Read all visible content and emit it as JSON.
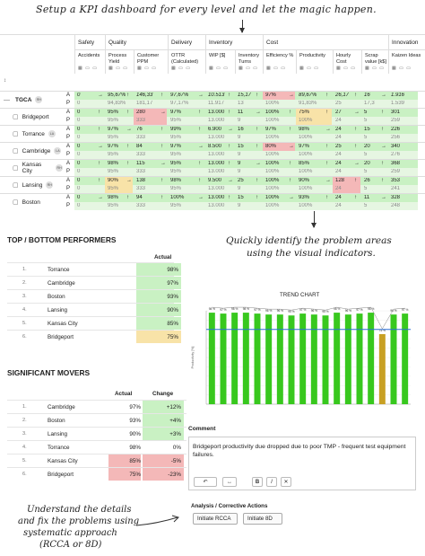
{
  "annotations": {
    "top": "Setup a KPI dashboard for every level and let the magic happen.",
    "middle_line1": "Quickly identify the problem areas",
    "middle_line2": "using the visual indicators.",
    "bottom_line1": "Understand the details",
    "bottom_line2": "and fix the problems using",
    "bottom_line3": "systematic approach",
    "bottom_line4": "(RCCA or 8D)"
  },
  "kpi_table": {
    "groups": [
      "Safety",
      "Quality",
      "Delivery",
      "Inventory",
      "Cost",
      "Innovation"
    ],
    "columns": [
      "Accidents",
      "Process Yield",
      "Customer PPM",
      "OTTR (Calculated)",
      "WIP [$]",
      "Inventory Turns",
      "Efficiency %",
      "Productivity",
      "Hourly Cost",
      "Scrap value [k$]",
      "Kaizen Ideas"
    ],
    "header_icons": "▦ ▭ ▭",
    "expand_icon": "↕",
    "row_labels": {
      "actual": "A",
      "plan": "P"
    },
    "rows": [
      {
        "name": "TGCA",
        "badge": "RH",
        "actual": [
          "0",
          "95,67%",
          "146,33",
          "97,67%",
          "10.513",
          "15,17",
          "97%",
          "89,67%",
          "26,17",
          "16",
          "1.916"
        ],
        "plan": [
          "0",
          "94,83%",
          "181,17",
          "97,17%",
          "11.917",
          "13",
          "100%",
          "91,83%",
          "25",
          "17,3",
          "1.539"
        ]
      },
      {
        "name": "Bridgeport",
        "badge": "",
        "actual": [
          "0",
          "95%",
          "280",
          "97%",
          "13.000",
          "11",
          "100%",
          "75%",
          "27",
          "5",
          "301"
        ],
        "plan": [
          "0",
          "95%",
          "333",
          "95%",
          "13.000",
          "9",
          "100%",
          "100%",
          "24",
          "5",
          "259"
        ]
      },
      {
        "name": "Torrance",
        "badge": "LA",
        "actual": [
          "0",
          "97%",
          "76",
          "99%",
          "6.900",
          "16",
          "97%",
          "98%",
          "24",
          "15",
          "226"
        ],
        "plan": [
          "0",
          "95%",
          "333",
          "95%",
          "13.000",
          "9",
          "100%",
          "100%",
          "24",
          "5",
          "256"
        ]
      },
      {
        "name": "Cambridge",
        "badge": "LA",
        "actual": [
          "0",
          "97%",
          "84",
          "97%",
          "8.500",
          "15",
          "80%",
          "97%",
          "25",
          "20",
          "340"
        ],
        "plan": [
          "0",
          "95%",
          "333",
          "95%",
          "13.000",
          "9",
          "100%",
          "100%",
          "24",
          "5",
          "276"
        ]
      },
      {
        "name": "Kansas City",
        "badge": "RH",
        "actual": [
          "0",
          "98%",
          "115",
          "95%",
          "13.000",
          "9",
          "100%",
          "85%",
          "24",
          "20",
          "368"
        ],
        "plan": [
          "0",
          "95%",
          "333",
          "95%",
          "13.000",
          "9",
          "100%",
          "100%",
          "24",
          "5",
          "259"
        ]
      },
      {
        "name": "Lansing",
        "badge": "RH",
        "actual": [
          "0",
          "90%",
          "138",
          "98%",
          "9.500",
          "25",
          "100%",
          "90%",
          "128",
          "26",
          "353"
        ],
        "plan": [
          "0",
          "95%",
          "333",
          "95%",
          "13.000",
          "9",
          "100%",
          "100%",
          "24",
          "5",
          "241"
        ]
      },
      {
        "name": "Boston",
        "badge": "",
        "actual": [
          "0",
          "98%",
          "94",
          "100%",
          "13.000",
          "15",
          "100%",
          "93%",
          "24",
          "11",
          "328"
        ],
        "plan": [
          "0",
          "95%",
          "333",
          "95%",
          "13.000",
          "9",
          "100%",
          "100%",
          "24",
          "5",
          "248"
        ]
      }
    ]
  },
  "performers": {
    "title": "TOP / BOTTOM PERFORMERS",
    "col_actual": "Actual",
    "rows": [
      {
        "n": "1.",
        "name": "Torrance",
        "value": "98%"
      },
      {
        "n": "2.",
        "name": "Cambridge",
        "value": "97%"
      },
      {
        "n": "3.",
        "name": "Boston",
        "value": "93%"
      },
      {
        "n": "4.",
        "name": "Lansing",
        "value": "90%"
      },
      {
        "n": "5.",
        "name": "Kansas City",
        "value": "85%"
      },
      {
        "n": "6.",
        "name": "Bridgeport",
        "value": "75%"
      }
    ]
  },
  "movers": {
    "title": "SIGNIFICANT MOVERS",
    "col_actual": "Actual",
    "col_change": "Change",
    "rows": [
      {
        "n": "1.",
        "name": "Cambridge",
        "value": "97%",
        "change": "+12%"
      },
      {
        "n": "2.",
        "name": "Boston",
        "value": "93%",
        "change": "+4%"
      },
      {
        "n": "3.",
        "name": "Lansing",
        "value": "90%",
        "change": "+3%"
      },
      {
        "n": "4.",
        "name": "Torrance",
        "value": "98%",
        "change": "0%"
      },
      {
        "n": "5.",
        "name": "Kansas City",
        "value": "85%",
        "change": "-5%"
      },
      {
        "n": "6.",
        "name": "Bridgeport",
        "value": "75%",
        "change": "-23%"
      }
    ]
  },
  "chart_data": {
    "type": "bar",
    "title": "TREND CHART",
    "ylabel": "Productivity [%]",
    "ylim": [
      0,
      100
    ],
    "target": 80,
    "values": [
      98,
      97,
      98,
      98,
      97,
      96,
      96,
      95,
      97,
      96,
      95,
      98,
      96,
      97,
      98,
      75,
      96,
      97
    ],
    "labels": [
      "98 %",
      "97 %",
      "98 %",
      "98 %",
      "97 %",
      "96 %",
      "96 %",
      "95 %",
      "97 %",
      "96 %",
      "95 %",
      "98 %",
      "96 %",
      "97 %",
      "98 %",
      "75 %",
      "96 %",
      "97 %"
    ],
    "highlight_index": 15,
    "colors": {
      "bar": "#38c81e",
      "bar_bad": "#c8a024",
      "target_line": "#2a6fd6",
      "trend_line": "#888888"
    }
  },
  "comment": {
    "title": "Comment",
    "text": "Bridgeport productivity due dropped due to poor TMP - frequent test equipment failures.",
    "toolbar": [
      "↶",
      "↔",
      "B",
      "I",
      "✕"
    ]
  },
  "analysis": {
    "title": "Analysis / Corrective Actions",
    "buttons": [
      "Initiate RCCA",
      "Initiate 8D"
    ]
  },
  "colors": {
    "good": "#c9f1c3",
    "bad": "#f4b8b8",
    "warn": "#f8e3a8"
  }
}
